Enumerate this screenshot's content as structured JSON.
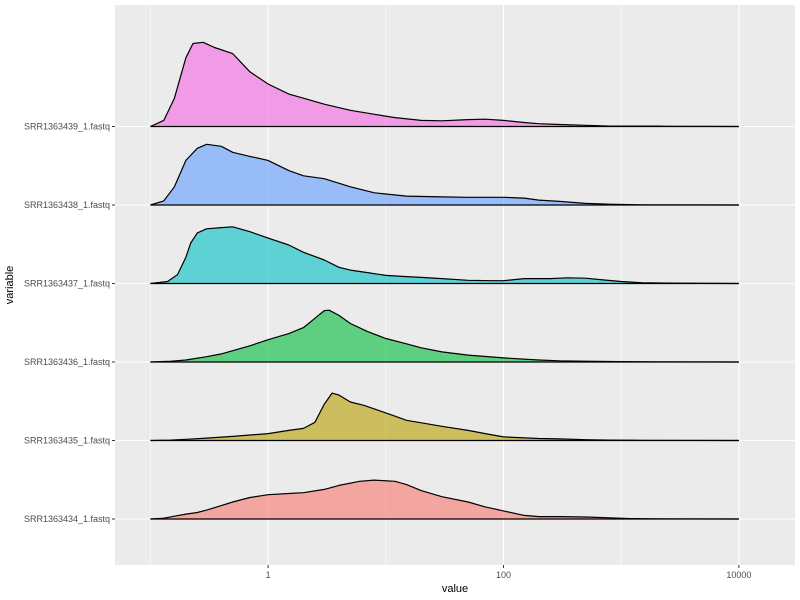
{
  "chart_data": {
    "type": "area",
    "subtype": "ridgeline",
    "title": "",
    "xlabel": "value",
    "ylabel": "variable",
    "x_scale": "log10",
    "xlim": [
      0.05,
      30000
    ],
    "x_ticks": [
      1,
      100,
      10000
    ],
    "x_tick_labels": [
      "1",
      "100",
      "10000"
    ],
    "grid": true,
    "legend": "none",
    "series": [
      {
        "name": "SRR1363434_1.fastq",
        "color": "#F8766D",
        "points": [
          [
            0.1,
            0
          ],
          [
            0.13,
            0.02
          ],
          [
            0.16,
            0.07
          ],
          [
            0.2,
            0.12
          ],
          [
            0.25,
            0.16
          ],
          [
            0.3,
            0.22
          ],
          [
            0.4,
            0.33
          ],
          [
            0.5,
            0.42
          ],
          [
            0.7,
            0.53
          ],
          [
            1,
            0.6
          ],
          [
            1.5,
            0.63
          ],
          [
            2,
            0.65
          ],
          [
            3,
            0.73
          ],
          [
            4,
            0.83
          ],
          [
            6,
            0.93
          ],
          [
            8,
            0.96
          ],
          [
            12,
            0.93
          ],
          [
            15,
            0.85
          ],
          [
            20,
            0.7
          ],
          [
            30,
            0.55
          ],
          [
            50,
            0.42
          ],
          [
            70,
            0.3
          ],
          [
            100,
            0.2
          ],
          [
            150,
            0.09
          ],
          [
            200,
            0.06
          ],
          [
            300,
            0.06
          ],
          [
            500,
            0.05
          ],
          [
            800,
            0.03
          ],
          [
            1200,
            0.01
          ],
          [
            2000,
            0.005
          ],
          [
            10000,
            0
          ]
        ]
      },
      {
        "name": "SRR1363435_1.fastq",
        "color": "#B79F00",
        "points": [
          [
            0.1,
            0
          ],
          [
            0.15,
            0.01
          ],
          [
            0.2,
            0.03
          ],
          [
            0.3,
            0.06
          ],
          [
            0.5,
            0.1
          ],
          [
            1,
            0.17
          ],
          [
            1.5,
            0.25
          ],
          [
            2,
            0.3
          ],
          [
            2.5,
            0.45
          ],
          [
            3,
            0.9
          ],
          [
            3.5,
            1.17
          ],
          [
            4,
            1.12
          ],
          [
            5,
            0.95
          ],
          [
            6.5,
            0.87
          ],
          [
            8,
            0.78
          ],
          [
            12,
            0.6
          ],
          [
            15,
            0.5
          ],
          [
            30,
            0.35
          ],
          [
            50,
            0.25
          ],
          [
            70,
            0.17
          ],
          [
            100,
            0.09
          ],
          [
            200,
            0.05
          ],
          [
            300,
            0.04
          ],
          [
            500,
            0.02
          ],
          [
            800,
            0.01
          ],
          [
            1500,
            0.005
          ],
          [
            10000,
            0
          ]
        ]
      },
      {
        "name": "SRR1363436_1.fastq",
        "color": "#00BA38",
        "points": [
          [
            0.1,
            0
          ],
          [
            0.15,
            0.02
          ],
          [
            0.2,
            0.05
          ],
          [
            0.3,
            0.13
          ],
          [
            0.4,
            0.2
          ],
          [
            0.5,
            0.28
          ],
          [
            0.7,
            0.4
          ],
          [
            1,
            0.55
          ],
          [
            1.5,
            0.7
          ],
          [
            2,
            0.85
          ],
          [
            2.5,
            1.08
          ],
          [
            3,
            1.27
          ],
          [
            3.3,
            1.28
          ],
          [
            4,
            1.15
          ],
          [
            5,
            0.95
          ],
          [
            7,
            0.75
          ],
          [
            10,
            0.58
          ],
          [
            15,
            0.45
          ],
          [
            20,
            0.35
          ],
          [
            30,
            0.25
          ],
          [
            50,
            0.17
          ],
          [
            100,
            0.1
          ],
          [
            200,
            0.05
          ],
          [
            300,
            0.03
          ],
          [
            500,
            0.02
          ],
          [
            1000,
            0.01
          ],
          [
            2000,
            0.005
          ],
          [
            10000,
            0
          ]
        ]
      },
      {
        "name": "SRR1363437_1.fastq",
        "color": "#00BFC4",
        "points": [
          [
            0.1,
            0
          ],
          [
            0.14,
            0.05
          ],
          [
            0.17,
            0.22
          ],
          [
            0.2,
            0.65
          ],
          [
            0.22,
            1.0
          ],
          [
            0.25,
            1.25
          ],
          [
            0.3,
            1.35
          ],
          [
            0.4,
            1.38
          ],
          [
            0.5,
            1.4
          ],
          [
            0.7,
            1.28
          ],
          [
            1,
            1.12
          ],
          [
            1.5,
            0.95
          ],
          [
            2,
            0.77
          ],
          [
            3,
            0.58
          ],
          [
            4,
            0.4
          ],
          [
            5,
            0.33
          ],
          [
            7,
            0.27
          ],
          [
            10,
            0.2
          ],
          [
            15,
            0.17
          ],
          [
            20,
            0.15
          ],
          [
            30,
            0.12
          ],
          [
            50,
            0.08
          ],
          [
            80,
            0.07
          ],
          [
            100,
            0.07
          ],
          [
            150,
            0.12
          ],
          [
            250,
            0.12
          ],
          [
            350,
            0.14
          ],
          [
            500,
            0.13
          ],
          [
            700,
            0.09
          ],
          [
            1000,
            0.05
          ],
          [
            1500,
            0.02
          ],
          [
            2500,
            0.01
          ],
          [
            10000,
            0
          ]
        ]
      },
      {
        "name": "SRR1363438_1.fastq",
        "color": "#619CFF",
        "points": [
          [
            0.1,
            0
          ],
          [
            0.13,
            0.1
          ],
          [
            0.16,
            0.45
          ],
          [
            0.2,
            1.1
          ],
          [
            0.25,
            1.4
          ],
          [
            0.3,
            1.5
          ],
          [
            0.4,
            1.45
          ],
          [
            0.5,
            1.3
          ],
          [
            0.7,
            1.2
          ],
          [
            1,
            1.1
          ],
          [
            1.5,
            0.85
          ],
          [
            2,
            0.72
          ],
          [
            3,
            0.65
          ],
          [
            5,
            0.45
          ],
          [
            8,
            0.3
          ],
          [
            15,
            0.22
          ],
          [
            30,
            0.2
          ],
          [
            50,
            0.19
          ],
          [
            100,
            0.19
          ],
          [
            150,
            0.17
          ],
          [
            200,
            0.12
          ],
          [
            300,
            0.09
          ],
          [
            500,
            0.04
          ],
          [
            800,
            0.02
          ],
          [
            1500,
            0.005
          ],
          [
            10000,
            0
          ]
        ]
      },
      {
        "name": "SRR1363439_1.fastq",
        "color": "#F564E3",
        "points": [
          [
            0.1,
            0
          ],
          [
            0.13,
            0.15
          ],
          [
            0.16,
            0.7
          ],
          [
            0.2,
            1.7
          ],
          [
            0.23,
            2.05
          ],
          [
            0.28,
            2.08
          ],
          [
            0.35,
            1.95
          ],
          [
            0.5,
            1.8
          ],
          [
            0.7,
            1.35
          ],
          [
            1,
            1.05
          ],
          [
            1.5,
            0.8
          ],
          [
            2,
            0.7
          ],
          [
            3,
            0.55
          ],
          [
            5,
            0.4
          ],
          [
            8,
            0.3
          ],
          [
            12,
            0.22
          ],
          [
            20,
            0.15
          ],
          [
            30,
            0.14
          ],
          [
            50,
            0.17
          ],
          [
            70,
            0.18
          ],
          [
            100,
            0.15
          ],
          [
            150,
            0.1
          ],
          [
            200,
            0.07
          ],
          [
            300,
            0.05
          ],
          [
            500,
            0.03
          ],
          [
            800,
            0.01
          ],
          [
            1000,
            0.01
          ],
          [
            1500,
            0.01
          ],
          [
            2000,
            0.01
          ],
          [
            2500,
            0.005
          ],
          [
            10000,
            0
          ]
        ]
      }
    ]
  }
}
